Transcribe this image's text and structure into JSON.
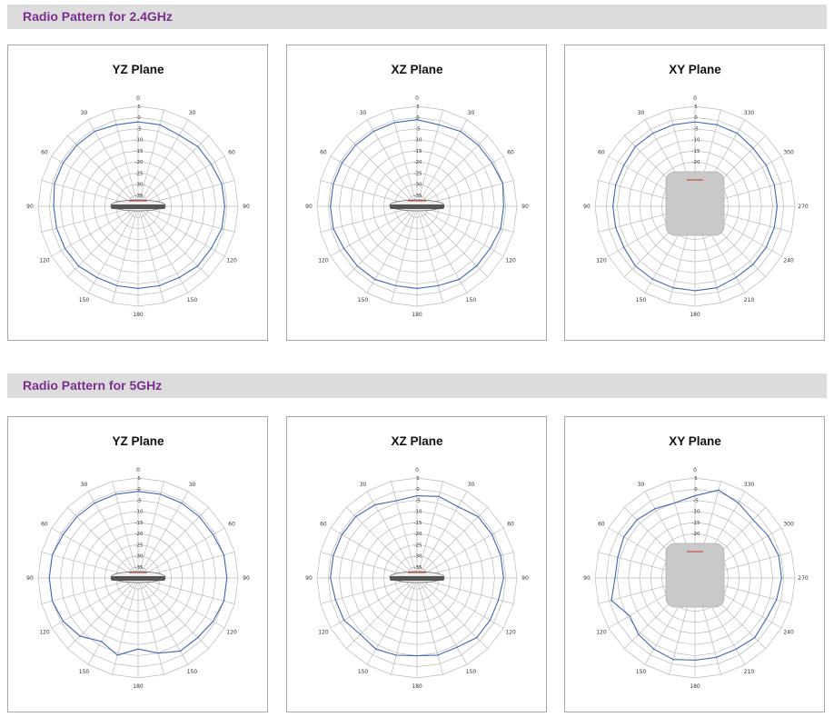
{
  "sections": [
    {
      "title": "Radio Pattern for 2.4GHz",
      "charts": [
        {
          "type": "radar",
          "title": "YZ Plane",
          "r_ticks": [
            "5",
            "0",
            "-5",
            "-10",
            "-15",
            "-20",
            "-25",
            "-30",
            "-35"
          ],
          "r_range": [
            -40,
            5
          ],
          "angle_labels": [
            "0",
            "30",
            "60",
            "90",
            "120",
            "150",
            "180",
            "150",
            "120",
            "90",
            "60",
            "30"
          ],
          "device": "ceiling",
          "series": [
            {
              "values": [
                -2,
                -2,
                -3,
                -2,
                -2,
                -1,
                -1,
                -1,
                -2,
                -2,
                -3,
                -3,
                -3,
                -3,
                -3,
                -2,
                -2,
                -2,
                -2,
                -1,
                -1,
                -1,
                -1,
                -2
              ]
            }
          ]
        },
        {
          "type": "radar",
          "title": "XZ Plane",
          "r_ticks": [
            "5",
            "0",
            "-5",
            "-10",
            "-15",
            "-20",
            "-25",
            "-30",
            "-35"
          ],
          "r_range": [
            -40,
            5
          ],
          "angle_labels": [
            "0",
            "30",
            "60",
            "90",
            "120",
            "150",
            "180",
            "150",
            "120",
            "90",
            "60",
            "30"
          ],
          "device": "ceiling",
          "series": [
            {
              "values": [
                -1,
                -2,
                -1,
                -1,
                -1,
                0,
                -1,
                -1,
                -2,
                -2,
                -2,
                -3,
                -3,
                -3,
                -2,
                -2,
                -2,
                -1,
                -1,
                -1,
                -1,
                -1,
                -1,
                -1
              ]
            }
          ]
        },
        {
          "type": "radar",
          "title": "XY Plane",
          "r_ticks": [
            "5",
            "0",
            "-5",
            "-10",
            "-15",
            "-20",
            "-25",
            "-30"
          ],
          "r_range": [
            -40,
            5
          ],
          "angle_labels": [
            "0",
            "330",
            "300",
            "270",
            "240",
            "210",
            "180",
            "150",
            "120",
            "90",
            "60",
            "30"
          ],
          "device": "top",
          "series": [
            {
              "values": [
                -2,
                -2,
                -2,
                -3,
                -3,
                -3,
                -3,
                -3,
                -3,
                -3,
                -3,
                -2,
                -2,
                -2,
                -2,
                -2,
                -3,
                -3,
                -3,
                -3,
                -3,
                -2,
                -2,
                -2
              ]
            }
          ]
        }
      ]
    },
    {
      "title": "Radio Pattern for 5GHz",
      "charts": [
        {
          "type": "radar",
          "title": "YZ Plane",
          "r_ticks": [
            "5",
            "0",
            "-5",
            "-10",
            "-15",
            "-20",
            "-25",
            "-30",
            "-35"
          ],
          "r_range": [
            -40,
            5
          ],
          "angle_labels": [
            "0",
            "30",
            "60",
            "90",
            "120",
            "150",
            "180",
            "150",
            "120",
            "90",
            "60",
            "30"
          ],
          "device": "ceiling",
          "series": [
            {
              "values": [
                -1,
                -1,
                -1,
                -1,
                -1,
                0,
                0,
                0,
                -1,
                -2,
                -2,
                -5,
                -8,
                -4,
                -7,
                -3,
                -1,
                0,
                0,
                0,
                -1,
                -1,
                -1,
                -1
              ]
            }
          ]
        },
        {
          "type": "radar",
          "title": "XZ Plane",
          "r_ticks": [
            "5",
            "0",
            "-5",
            "-10",
            "-15",
            "-20",
            "-25",
            "-30",
            "-35"
          ],
          "r_range": [
            -40,
            5
          ],
          "angle_labels": [
            "0",
            "30",
            "60",
            "90",
            "120",
            "150",
            "180",
            "150",
            "120",
            "90",
            "60",
            "30"
          ],
          "device": "ceiling",
          "series": [
            {
              "values": [
                -3,
                -2,
                -3,
                -1,
                -1,
                -1,
                -1,
                -2,
                -2,
                -2,
                -4,
                -4,
                -5,
                -4,
                -3,
                -4,
                -2,
                -2,
                -1,
                -1,
                -1,
                -1,
                -2,
                -4
              ]
            }
          ]
        },
        {
          "type": "radar",
          "title": "XY Plane",
          "r_ticks": [
            "5",
            "0",
            "-5",
            "-10",
            "-15",
            "-20",
            "-25",
            "-30"
          ],
          "r_range": [
            -40,
            5
          ],
          "angle_labels": [
            "0",
            "330",
            "300",
            "270",
            "240",
            "210",
            "180",
            "150",
            "120",
            "90",
            "60",
            "30"
          ],
          "device": "top",
          "series": [
            {
              "values": [
                -3,
                1,
                -1,
                -3,
                -2,
                -1,
                -1,
                -2,
                -3,
                -2,
                -3,
                -3,
                -3,
                -2,
                -3,
                -4,
                -6,
                -1,
                -4,
                -4,
                -3,
                -3,
                -4,
                -5
              ]
            }
          ]
        }
      ]
    }
  ],
  "colors": {
    "line": "#3d66b5",
    "grid": "#b9b9b9",
    "section_title": "#7a2f8f",
    "section_bar": "#dcdcdc"
  }
}
